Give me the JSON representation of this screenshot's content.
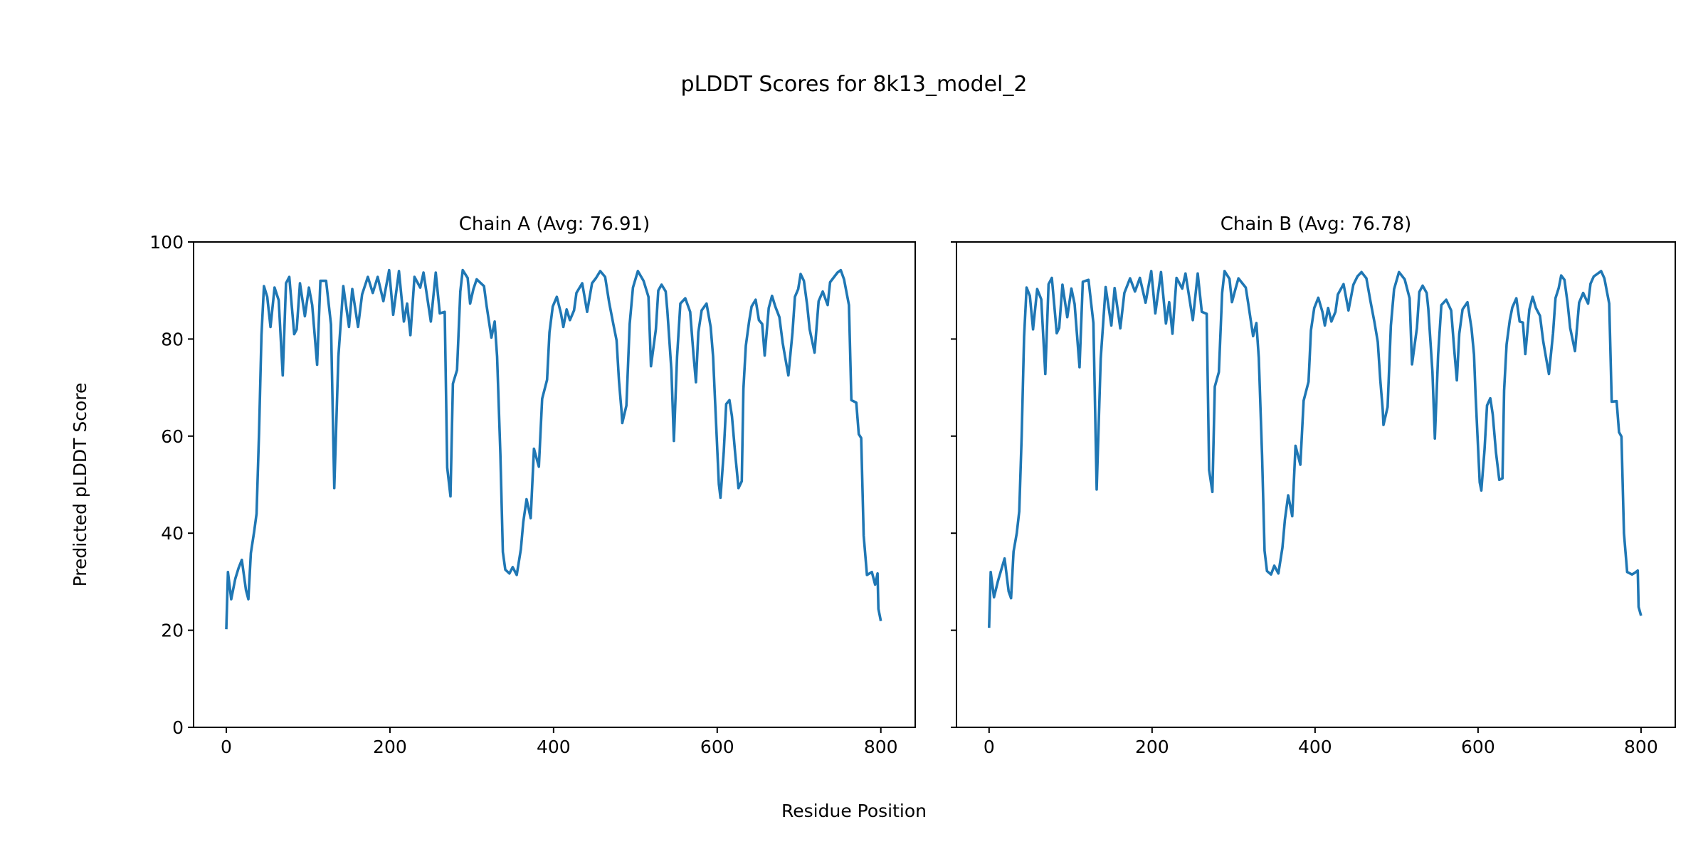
{
  "chart_data": {
    "type": "line",
    "title": "pLDDT Scores for 8k13_model_2",
    "xlabel": "Residue Position",
    "ylabel": "Predicted pLDDT Score",
    "color": "#1f77b4",
    "xlim": [
      -40,
      842
    ],
    "ylim": [
      0,
      100
    ],
    "xticks": [
      0,
      200,
      400,
      600,
      800
    ],
    "yticks": [
      0,
      20,
      40,
      60,
      80,
      100
    ],
    "grid": false,
    "panels": [
      {
        "title": "Chain A (Avg: 76.91)",
        "x": [
          0,
          2,
          6,
          11,
          15,
          19,
          24,
          27,
          30,
          34,
          37,
          40,
          43,
          46,
          50,
          54,
          59,
          64,
          69,
          73,
          77,
          83,
          86,
          90,
          96,
          101,
          105,
          111,
          115,
          122,
          128,
          132,
          137,
          143,
          150,
          154,
          161,
          166,
          173,
          179,
          185,
          192,
          199,
          204,
          211,
          217,
          221,
          225,
          230,
          237,
          241,
          250,
          256,
          261,
          267,
          270,
          274,
          277,
          282,
          286,
          289,
          295,
          298,
          302,
          306,
          315,
          318,
          324,
          328,
          331,
          335,
          338,
          341,
          346,
          350,
          355,
          360,
          363,
          367,
          372,
          376,
          382,
          386,
          392,
          395,
          399,
          404,
          409,
          412,
          416,
          420,
          425,
          428,
          435,
          441,
          447,
          452,
          457,
          463,
          468,
          473,
          477,
          480,
          483,
          484,
          489,
          493,
          497,
          503,
          510,
          516,
          519,
          525,
          528,
          532,
          537,
          539,
          544,
          547,
          551,
          555,
          561,
          567,
          571,
          574,
          577,
          581,
          587,
          592,
          595,
          597,
          602,
          604,
          608,
          611,
          615,
          618,
          622,
          626,
          630,
          632,
          635,
          639,
          642,
          647,
          651,
          655,
          658,
          663,
          667,
          671,
          676,
          680,
          684,
          687,
          692,
          695,
          699,
          702,
          706,
          710,
          713,
          719,
          724,
          729,
          735,
          738,
          742,
          747,
          751,
          755,
          761,
          764,
          770,
          773,
          776,
          779,
          783,
          789,
          793,
          796,
          797,
          800
        ],
        "y": [
          20.2,
          32,
          26.4,
          30.6,
          32.8,
          34.5,
          28.3,
          26.4,
          35.9,
          40.3,
          44,
          60.7,
          80.8,
          90.9,
          88.7,
          82.5,
          90.6,
          88,
          72.5,
          91.5,
          92.8,
          81,
          82,
          91.5,
          84.7,
          90.6,
          87,
          74.7,
          92,
          92,
          83,
          49.3,
          76.4,
          90.9,
          82.5,
          90.3,
          82.5,
          89.2,
          92.8,
          89.5,
          92.8,
          87.8,
          94.2,
          85,
          94,
          83.6,
          87.3,
          80.8,
          92.8,
          90.6,
          93.7,
          83.6,
          93.7,
          85.3,
          85.6,
          53.5,
          47.6,
          70.8,
          73.6,
          89.8,
          94.2,
          92.6,
          87.3,
          90.3,
          92.3,
          90.9,
          87,
          80.3,
          83.6,
          76.4,
          56.3,
          36.1,
          32.5,
          31.7,
          33,
          31.4,
          36.7,
          42.3,
          47,
          43.1,
          57.4,
          53.7,
          67.7,
          71.6,
          81.4,
          86.7,
          88.7,
          85.3,
          82.5,
          86.1,
          83.9,
          85.9,
          89.5,
          91.5,
          85.6,
          91.5,
          92.6,
          94,
          92.8,
          87.5,
          83.1,
          79.7,
          71.3,
          65.2,
          62.7,
          66.3,
          83.1,
          90.6,
          94,
          92,
          88.7,
          74.4,
          82,
          90,
          91.2,
          89.8,
          85.9,
          73.6,
          59,
          76.4,
          87.3,
          88.4,
          85.6,
          76.9,
          71.1,
          81.4,
          85.9,
          87.3,
          82.5,
          76.4,
          68.8,
          50.1,
          47.3,
          56.8,
          66.6,
          67.4,
          64.1,
          56.3,
          49.3,
          50.7,
          69.7,
          78.6,
          83.6,
          86.7,
          88.1,
          83.9,
          83.1,
          76.6,
          86.4,
          88.9,
          86.7,
          84.5,
          79.2,
          75.3,
          72.5,
          81.4,
          88.7,
          90.3,
          93.4,
          92,
          87,
          82,
          77.2,
          87.8,
          89.8,
          87,
          91.7,
          92.6,
          93.7,
          94.2,
          92.3,
          87,
          67.4,
          66.9,
          60.4,
          59.6,
          39.5,
          31.4,
          32,
          29.4,
          31.7,
          24.4,
          21.9
        ]
      },
      {
        "title": "Chain B (Avg: 76.78)",
        "x": [
          0,
          2,
          6,
          11,
          15,
          19,
          24,
          27,
          30,
          34,
          37,
          40,
          43,
          46,
          50,
          54,
          59,
          64,
          69,
          73,
          77,
          83,
          86,
          90,
          96,
          101,
          105,
          111,
          115,
          122,
          128,
          132,
          137,
          143,
          150,
          154,
          161,
          166,
          173,
          179,
          185,
          192,
          199,
          204,
          211,
          217,
          221,
          225,
          230,
          237,
          241,
          250,
          256,
          261,
          267,
          270,
          274,
          277,
          282,
          286,
          289,
          295,
          298,
          302,
          306,
          315,
          318,
          324,
          328,
          331,
          335,
          338,
          341,
          346,
          350,
          355,
          360,
          363,
          367,
          372,
          376,
          382,
          386,
          392,
          395,
          399,
          404,
          409,
          412,
          416,
          420,
          425,
          428,
          435,
          441,
          447,
          452,
          457,
          463,
          468,
          473,
          477,
          480,
          483,
          484,
          489,
          493,
          497,
          503,
          510,
          516,
          519,
          525,
          528,
          532,
          537,
          539,
          544,
          547,
          551,
          555,
          561,
          567,
          571,
          574,
          577,
          581,
          587,
          592,
          595,
          597,
          602,
          604,
          608,
          611,
          615,
          618,
          622,
          626,
          630,
          632,
          635,
          639,
          642,
          647,
          651,
          655,
          658,
          663,
          667,
          671,
          676,
          680,
          684,
          687,
          692,
          695,
          699,
          702,
          706,
          710,
          713,
          719,
          724,
          729,
          735,
          738,
          742,
          747,
          751,
          755,
          761,
          764,
          770,
          773,
          776,
          779,
          783,
          789,
          793,
          796,
          797,
          800
        ],
        "y": [
          20.5,
          32,
          26.8,
          30.2,
          32.5,
          34.8,
          28,
          26.6,
          36.2,
          40,
          44.5,
          60,
          80.5,
          90.6,
          88.9,
          82,
          90.3,
          88.2,
          72.8,
          91.3,
          92.6,
          81.2,
          82.3,
          91.2,
          84.5,
          90.4,
          87.2,
          74.2,
          91.8,
          92.2,
          83.3,
          49,
          76,
          90.7,
          82.8,
          90.5,
          82.2,
          89.5,
          92.5,
          89.8,
          92.6,
          87.5,
          94,
          85.3,
          93.8,
          83.2,
          87.6,
          81.1,
          92.6,
          90.4,
          93.5,
          83.9,
          93.5,
          85.6,
          85.2,
          53,
          48.5,
          70.2,
          73.2,
          89.5,
          94,
          92.4,
          87.6,
          90.1,
          92.5,
          90.6,
          87.3,
          80.6,
          83.3,
          76.1,
          56,
          36.4,
          32.2,
          31.5,
          33.3,
          31.7,
          37,
          42.8,
          47.8,
          43.5,
          58,
          54.1,
          67.3,
          71.2,
          81.8,
          86.4,
          88.5,
          85.6,
          82.8,
          86.4,
          83.6,
          85.6,
          89.2,
          91.3,
          85.9,
          91.2,
          92.9,
          93.8,
          92.5,
          87.8,
          83.4,
          79.4,
          71.6,
          65.5,
          62.3,
          66,
          82.8,
          90.3,
          93.8,
          92.3,
          88.4,
          74.8,
          82.3,
          89.7,
          91,
          89.5,
          86.2,
          73.2,
          59.5,
          76.8,
          87,
          88.1,
          85.9,
          77.3,
          71.5,
          81.1,
          86.1,
          87.6,
          82.2,
          76.8,
          68.5,
          50.5,
          48.8,
          57.2,
          66.3,
          67.8,
          64.5,
          56.6,
          51,
          51.3,
          69.4,
          78.9,
          83.9,
          86.5,
          88.4,
          83.6,
          83.4,
          76.9,
          86.1,
          88.7,
          86.4,
          84.8,
          79.5,
          75.6,
          72.8,
          81.1,
          88.4,
          90.5,
          93.1,
          92.2,
          87.3,
          82.3,
          77.5,
          87.5,
          89.5,
          87.3,
          91.4,
          92.9,
          93.5,
          94,
          92.5,
          87.3,
          67.1,
          67.2,
          60.8,
          59.9,
          40,
          32,
          31.5,
          31.9,
          32.3,
          24.8,
          23
        ]
      }
    ]
  }
}
